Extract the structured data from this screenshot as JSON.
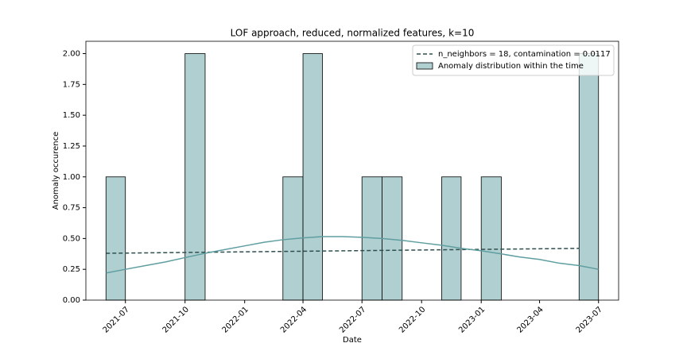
{
  "chart_data": {
    "type": "histogram",
    "title": "LOF approach, reduced, normalized features, k=10",
    "x_label": "Date",
    "y_label": "Anomaly occurence",
    "histogram": {
      "name": "Anomaly distribution within the time",
      "color": "#b0cfd1",
      "edge_color": "#000000",
      "bins": [
        "2021-06",
        "2021-07",
        "2021-08",
        "2021-09",
        "2021-10",
        "2021-11",
        "2021-12",
        "2022-01",
        "2022-02",
        "2022-03",
        "2022-04",
        "2022-05",
        "2022-06",
        "2022-07",
        "2022-08",
        "2022-09",
        "2022-10",
        "2022-11",
        "2022-12",
        "2023-01",
        "2023-02",
        "2023-03",
        "2023-04",
        "2023-05",
        "2023-06",
        "2023-07"
      ],
      "counts": [
        1,
        0,
        0,
        0,
        2,
        0,
        0,
        0,
        0,
        1,
        2,
        0,
        0,
        1,
        1,
        0,
        0,
        1,
        0,
        1,
        0,
        0,
        0,
        0,
        2
      ]
    },
    "lines": [
      {
        "name": "n_neighbors = 18, contamination = 0.0117",
        "color": "#2f4f4f",
        "dashed": true,
        "x": [
          "2021-06",
          "2023-06"
        ],
        "values": [
          0.38,
          0.42
        ]
      },
      {
        "color": "#5f9ea0",
        "dashed": false,
        "x": [
          "2021-06",
          "2021-07",
          "2021-08",
          "2021-09",
          "2021-10",
          "2021-11",
          "2021-12",
          "2022-01",
          "2022-02",
          "2022-03",
          "2022-04",
          "2022-05",
          "2022-06",
          "2022-07",
          "2022-08",
          "2022-09",
          "2022-10",
          "2022-11",
          "2022-12",
          "2023-01",
          "2023-02",
          "2023-03",
          "2023-04",
          "2023-05",
          "2023-06",
          "2023-07"
        ],
        "values": [
          0.22,
          0.25,
          0.28,
          0.31,
          0.345,
          0.38,
          0.41,
          0.44,
          0.47,
          0.49,
          0.505,
          0.515,
          0.515,
          0.51,
          0.5,
          0.485,
          0.465,
          0.445,
          0.42,
          0.4,
          0.375,
          0.35,
          0.33,
          0.3,
          0.28,
          0.25
        ]
      }
    ],
    "xlim": [
      "2021-05",
      "2023-08"
    ],
    "xticks": [
      "2021-07",
      "2021-10",
      "2022-01",
      "2022-04",
      "2022-07",
      "2022-10",
      "2023-01",
      "2023-04",
      "2023-07"
    ],
    "ylim": [
      0,
      2.1
    ],
    "yticks": [
      {
        "value": 0,
        "label": "0.00"
      },
      {
        "value": 0.25,
        "label": "0.25"
      },
      {
        "value": 0.5,
        "label": "0.50"
      },
      {
        "value": 0.75,
        "label": "0.75"
      },
      {
        "value": 1,
        "label": "1.00"
      },
      {
        "value": 1.25,
        "label": "1.25"
      },
      {
        "value": 1.5,
        "label": "1.50"
      },
      {
        "value": 1.75,
        "label": "1.75"
      },
      {
        "value": 2,
        "label": "2.00"
      }
    ],
    "grid": false,
    "legend": "upper right"
  }
}
